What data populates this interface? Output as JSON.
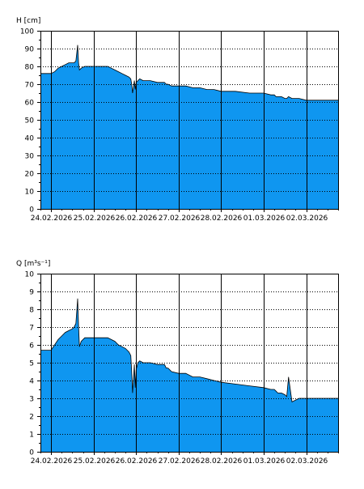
{
  "chart_data": [
    {
      "type": "area",
      "ylabel": "H [cm]",
      "ylim": [
        0,
        100
      ],
      "yticks": [
        0,
        10,
        20,
        30,
        40,
        50,
        60,
        70,
        80,
        90,
        100
      ],
      "xlim": [
        "23.02.2026 18:00",
        "02.03.2026 18:00"
      ],
      "xticks": [
        "24.02.2026",
        "25.02.2026",
        "26.02.2026",
        "27.02.2026",
        "28.02.2026",
        "01.03.2026",
        "02.03.2026"
      ],
      "grid": true,
      "fill_color": "#0f96f0",
      "x": [
        "23.02.2026 18:00",
        "23.02.2026 20:00",
        "24.02.2026 00:00",
        "24.02.2026 02:00",
        "24.02.2026 04:00",
        "24.02.2026 06:00",
        "24.02.2026 08:00",
        "24.02.2026 10:00",
        "24.02.2026 12:00",
        "24.02.2026 13:00",
        "24.02.2026 14:00",
        "24.02.2026 15:00",
        "24.02.2026 15:30",
        "24.02.2026 16:00",
        "24.02.2026 17:00",
        "24.02.2026 19:00",
        "24.02.2026 21:00",
        "25.02.2026 00:00",
        "25.02.2026 08:00",
        "25.02.2026 10:00",
        "25.02.2026 12:00",
        "25.02.2026 14:00",
        "25.02.2026 16:00",
        "25.02.2026 18:00",
        "25.02.2026 20:00",
        "25.02.2026 21:00",
        "25.02.2026 21:30",
        "25.02.2026 22:00",
        "25.02.2026 23:00",
        "25.02.2026 23:30",
        "26.02.2026 00:00",
        "26.02.2026 01:00",
        "26.02.2026 02:00",
        "26.02.2026 04:00",
        "26.02.2026 08:00",
        "26.02.2026 12:00",
        "26.02.2026 16:00",
        "26.02.2026 17:00",
        "26.02.2026 18:00",
        "26.02.2026 20:00",
        "27.02.2026 00:00",
        "27.02.2026 04:00",
        "27.02.2026 08:00",
        "27.02.2026 12:00",
        "27.02.2026 16:00",
        "27.02.2026 20:00",
        "28.02.2026 00:00",
        "28.02.2026 08:00",
        "28.02.2026 16:00",
        "01.03.2026 00:00",
        "01.03.2026 04:00",
        "01.03.2026 06:00",
        "01.03.2026 07:00",
        "01.03.2026 08:00",
        "01.03.2026 10:00",
        "01.03.2026 12:00",
        "01.03.2026 13:00",
        "01.03.2026 14:00",
        "01.03.2026 16:00",
        "01.03.2026 20:00",
        "02.03.2026 00:00",
        "02.03.2026 06:00",
        "02.03.2026 12:00",
        "02.03.2026 18:00"
      ],
      "y": [
        76,
        76,
        76,
        77,
        79,
        80,
        81,
        82,
        82,
        82,
        83,
        92,
        82,
        78,
        79,
        80,
        80,
        80,
        80,
        79,
        78,
        77,
        76,
        75,
        74,
        73,
        70,
        65,
        72,
        67,
        71,
        72,
        73,
        72,
        72,
        71,
        71,
        70,
        70,
        69,
        69,
        69,
        68,
        68,
        67,
        67,
        66,
        66,
        65,
        65,
        64,
        64,
        63,
        63,
        63,
        62,
        62,
        63,
        62,
        62,
        61,
        61,
        61,
        61
      ]
    },
    {
      "type": "area",
      "ylabel": "Q [m³s⁻¹]",
      "ylim": [
        0,
        10
      ],
      "yticks": [
        0,
        1,
        2,
        3,
        4,
        5,
        6,
        7,
        8,
        9,
        10
      ],
      "xlim": [
        "23.02.2026 18:00",
        "02.03.2026 18:00"
      ],
      "xticks": [
        "24.02.2026",
        "25.02.2026",
        "26.02.2026",
        "27.02.2026",
        "28.02.2026",
        "01.03.2026",
        "02.03.2026"
      ],
      "grid": true,
      "fill_color": "#0f96f0",
      "x": [
        "23.02.2026 18:00",
        "23.02.2026 20:00",
        "24.02.2026 00:00",
        "24.02.2026 02:00",
        "24.02.2026 04:00",
        "24.02.2026 06:00",
        "24.02.2026 08:00",
        "24.02.2026 10:00",
        "24.02.2026 12:00",
        "24.02.2026 13:00",
        "24.02.2026 14:00",
        "24.02.2026 15:00",
        "24.02.2026 15:30",
        "24.02.2026 16:00",
        "24.02.2026 17:00",
        "24.02.2026 19:00",
        "24.02.2026 21:00",
        "25.02.2026 00:00",
        "25.02.2026 08:00",
        "25.02.2026 10:00",
        "25.02.2026 12:00",
        "25.02.2026 14:00",
        "25.02.2026 16:00",
        "25.02.2026 18:00",
        "25.02.2026 20:00",
        "25.02.2026 21:00",
        "25.02.2026 21:30",
        "25.02.2026 22:00",
        "25.02.2026 23:00",
        "25.02.2026 23:30",
        "26.02.2026 00:00",
        "26.02.2026 01:00",
        "26.02.2026 02:00",
        "26.02.2026 04:00",
        "26.02.2026 08:00",
        "26.02.2026 12:00",
        "26.02.2026 16:00",
        "26.02.2026 17:00",
        "26.02.2026 18:00",
        "26.02.2026 20:00",
        "27.02.2026 00:00",
        "27.02.2026 04:00",
        "27.02.2026 08:00",
        "27.02.2026 12:00",
        "27.02.2026 16:00",
        "27.02.2026 20:00",
        "28.02.2026 00:00",
        "28.02.2026 08:00",
        "28.02.2026 16:00",
        "01.03.2026 00:00",
        "01.03.2026 04:00",
        "01.03.2026 06:00",
        "01.03.2026 07:00",
        "01.03.2026 08:00",
        "01.03.2026 10:00",
        "01.03.2026 12:00",
        "01.03.2026 13:00",
        "01.03.2026 14:00",
        "01.03.2026 16:00",
        "01.03.2026 20:00",
        "02.03.2026 00:00",
        "02.03.2026 06:00",
        "02.03.2026 12:00",
        "02.03.2026 18:00"
      ],
      "y": [
        5.7,
        5.7,
        5.7,
        6.0,
        6.3,
        6.5,
        6.7,
        6.8,
        6.9,
        7.0,
        7.2,
        8.6,
        7.1,
        5.9,
        6.2,
        6.4,
        6.4,
        6.4,
        6.4,
        6.3,
        6.2,
        6.0,
        5.9,
        5.8,
        5.6,
        5.4,
        4.5,
        3.3,
        4.9,
        3.6,
        4.6,
        5.0,
        5.1,
        5.0,
        5.0,
        4.9,
        4.9,
        4.7,
        4.7,
        4.5,
        4.4,
        4.4,
        4.2,
        4.2,
        4.1,
        4.0,
        3.9,
        3.8,
        3.7,
        3.6,
        3.5,
        3.5,
        3.4,
        3.3,
        3.3,
        3.2,
        3.1,
        4.2,
        2.8,
        3.0,
        3.0,
        3.0,
        3.0,
        3.0
      ]
    }
  ]
}
